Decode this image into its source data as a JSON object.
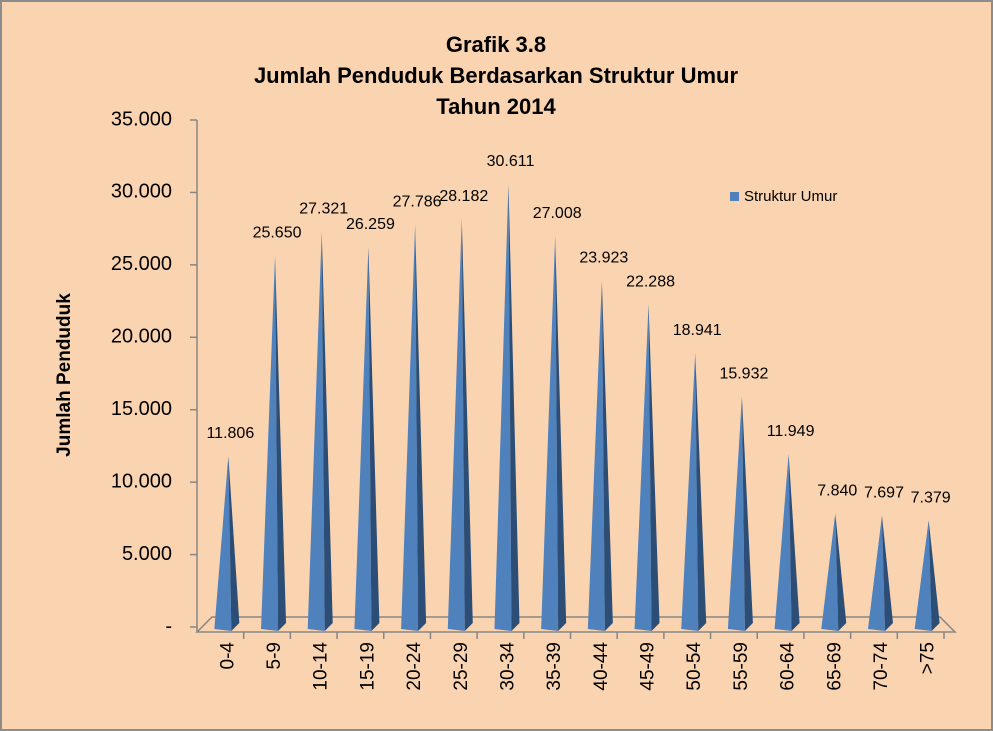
{
  "chart_data": {
    "type": "pyramid",
    "title": [
      "Grafik 3.8",
      "Jumlah Penduduk Berdasarkan Struktur Umur",
      "Tahun 2014"
    ],
    "y_label": "Jumlah Penduduk",
    "categories": [
      "0-4",
      "5-9",
      "10-14",
      "15-19",
      "20-24",
      "25-29",
      "30-34",
      "35-39",
      "40-44",
      "45-49",
      "50-54",
      "55-59",
      "60-64",
      "65-69",
      "70-74",
      ">75"
    ],
    "series": [
      {
        "name": "Struktur Umur",
        "color": "#4f81bd",
        "values": [
          11806,
          25650,
          27321,
          26259,
          27786,
          28182,
          30611,
          27008,
          23923,
          22288,
          18941,
          15932,
          11949,
          7840,
          7697,
          7379
        ],
        "value_labels": [
          "11.806",
          "25.650",
          "27.321",
          "26.259",
          "27.786",
          "28.182",
          "30.611",
          "27.008",
          "23.923",
          "22.288",
          "18.941",
          "15.932",
          "11.949",
          "7.840",
          "7.697",
          "7.379"
        ]
      }
    ],
    "ylim": [
      0,
      35000
    ],
    "yticks": [
      {
        "value": 0,
        "label": "-"
      },
      {
        "value": 5000,
        "label": "5.000"
      },
      {
        "value": 10000,
        "label": "10.000"
      },
      {
        "value": 15000,
        "label": "15.000"
      },
      {
        "value": 20000,
        "label": "20.000"
      },
      {
        "value": 25000,
        "label": "25.000"
      },
      {
        "value": 30000,
        "label": "30.000"
      },
      {
        "value": 35000,
        "label": "35.000"
      }
    ],
    "legend": "top-right"
  }
}
